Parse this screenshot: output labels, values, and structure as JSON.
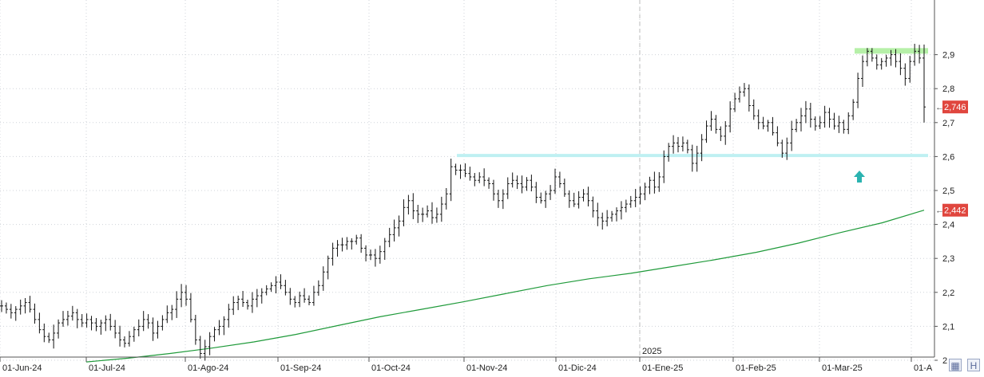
{
  "chart_data": {
    "type": "ohlc",
    "x_ticks": [
      "01-Jun-24",
      "01-Jul-24",
      "01-Ago-24",
      "01-Sep-24",
      "01-Oct-24",
      "01-Nov-24",
      "01-Dic-24",
      "01-Ene-25",
      "01-Feb-25",
      "01-Mar-25",
      "01-A"
    ],
    "year_marker": "2025",
    "y_ticks": [
      "2",
      "2,1",
      "2,2",
      "2,3",
      "2,4",
      "2,5",
      "2,6",
      "2,7",
      "2,8",
      "2,9"
    ],
    "ylim": [
      1.975,
      2.94
    ],
    "grid": true,
    "last_price_label": "2,746",
    "last_price": 2.746,
    "ma_label": "2,442",
    "ma_value": 2.442,
    "support_level": 2.603,
    "resistance_level": 2.91,
    "close_series": [
      2.16,
      2.15,
      2.14,
      2.15,
      2.16,
      2.17,
      2.15,
      2.12,
      2.09,
      2.07,
      2.06,
      2.08,
      2.11,
      2.12,
      2.13,
      2.14,
      2.12,
      2.11,
      2.12,
      2.11,
      2.1,
      2.11,
      2.12,
      2.1,
      2.08,
      2.06,
      2.05,
      2.07,
      2.09,
      2.1,
      2.12,
      2.11,
      2.08,
      2.1,
      2.12,
      2.14,
      2.15,
      2.18,
      2.2,
      2.18,
      2.12,
      2.06,
      2.02,
      2.04,
      2.07,
      2.09,
      2.1,
      2.12,
      2.15,
      2.17,
      2.18,
      2.17,
      2.16,
      2.18,
      2.19,
      2.2,
      2.21,
      2.22,
      2.23,
      2.22,
      2.2,
      2.18,
      2.17,
      2.19,
      2.18,
      2.17,
      2.2,
      2.22,
      2.26,
      2.3,
      2.33,
      2.34,
      2.34,
      2.35,
      2.35,
      2.36,
      2.33,
      2.31,
      2.31,
      2.3,
      2.32,
      2.35,
      2.37,
      2.39,
      2.41,
      2.45,
      2.47,
      2.44,
      2.43,
      2.43,
      2.44,
      2.42,
      2.43,
      2.46,
      2.49,
      2.57,
      2.56,
      2.56,
      2.55,
      2.54,
      2.53,
      2.54,
      2.53,
      2.52,
      2.49,
      2.47,
      2.49,
      2.52,
      2.53,
      2.52,
      2.51,
      2.53,
      2.51,
      2.48,
      2.47,
      2.49,
      2.5,
      2.54,
      2.52,
      2.49,
      2.47,
      2.46,
      2.48,
      2.49,
      2.47,
      2.44,
      2.42,
      2.41,
      2.42,
      2.43,
      2.44,
      2.45,
      2.46,
      2.47,
      2.48,
      2.49,
      2.51,
      2.53,
      2.51,
      2.54,
      2.6,
      2.63,
      2.64,
      2.63,
      2.64,
      2.62,
      2.58,
      2.61,
      2.65,
      2.69,
      2.71,
      2.68,
      2.66,
      2.69,
      2.74,
      2.77,
      2.79,
      2.8,
      2.75,
      2.72,
      2.7,
      2.69,
      2.7,
      2.67,
      2.64,
      2.61,
      2.64,
      2.68,
      2.7,
      2.72,
      2.74,
      2.71,
      2.69,
      2.7,
      2.73,
      2.71,
      2.69,
      2.7,
      2.68,
      2.72,
      2.76,
      2.83,
      2.88,
      2.91,
      2.89,
      2.87,
      2.88,
      2.89,
      2.9,
      2.88,
      2.86,
      2.83,
      2.88,
      2.91,
      2.89,
      2.746
    ],
    "ma_series": [
      1.995,
      2.006,
      2.02,
      2.036,
      2.054,
      2.076,
      2.102,
      2.128,
      2.15,
      2.172,
      2.196,
      2.22,
      2.24,
      2.256,
      2.276,
      2.296,
      2.318,
      2.345,
      2.376,
      2.405,
      2.442
    ]
  }
}
